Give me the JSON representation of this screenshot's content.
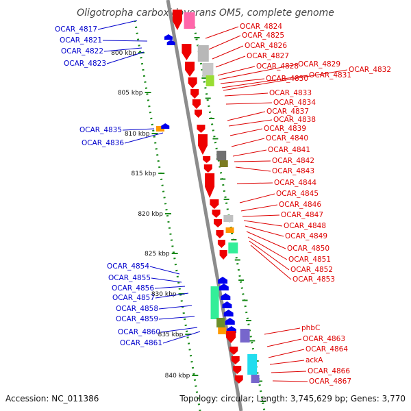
{
  "title": "Oligotropha carboxidovorans OM5, complete genome",
  "footer": {
    "accession": "Accession: NC_011386",
    "summary": "Topology: circular; Length: 3,745,629 bp; Genes: 3,770"
  },
  "colors": {
    "backbone": "#8c8c8c",
    "dots": "#1a8a1a",
    "minus_label": "#0000cc",
    "plus_label": "#dd0000"
  },
  "scale_ticks": [
    "800 kbp",
    "805 kbp",
    "810 kbp",
    "815 kbp",
    "820 kbp",
    "825 kbp",
    "830 kbp",
    "835 kbp",
    "840 kbp"
  ],
  "genes_minus_strand": [
    "OCAR_4817",
    "OCAR_4821",
    "OCAR_4822",
    "OCAR_4823",
    "OCAR_4835",
    "OCAR_4836",
    "OCAR_4854",
    "OCAR_4855",
    "OCAR_4856",
    "OCAR_4857",
    "OCAR_4858",
    "OCAR_4859",
    "OCAR_4860",
    "OCAR_4861"
  ],
  "genes_plus_strand": [
    "OCAR_4824",
    "OCAR_4825",
    "OCAR_4826",
    "OCAR_4827",
    "OCAR_4828",
    "OCAR_4829",
    "OCAR_4830",
    "OCAR_4831",
    "OCAR_4832",
    "OCAR_4833",
    "OCAR_4834",
    "OCAR_4837",
    "OCAR_4838",
    "OCAR_4839",
    "OCAR_4840",
    "OCAR_4841",
    "OCAR_4842",
    "OCAR_4843",
    "OCAR_4844",
    "OCAR_4845",
    "OCAR_4846",
    "OCAR_4847",
    "OCAR_4848",
    "OCAR_4849",
    "OCAR_4850",
    "OCAR_4851",
    "OCAR_4852",
    "OCAR_4853",
    "phbC",
    "OCAR_4863",
    "OCAR_4864",
    "ackA",
    "OCAR_4866",
    "OCAR_4867"
  ]
}
